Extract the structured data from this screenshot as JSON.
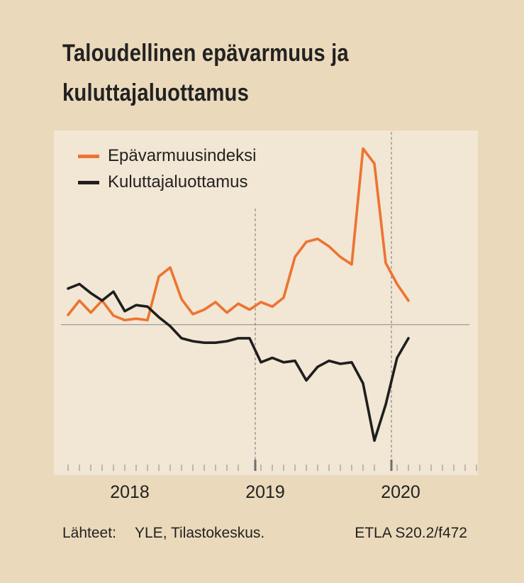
{
  "title_lines": [
    "Taloudellinen epävarmuus ja",
    "kuluttajaluottamus"
  ],
  "source_label": "Lähteet:",
  "source_text": "YLE, Tilastokeskus.",
  "code": "ETLA S20.2/f472",
  "colors": {
    "background": "#ebd9bb",
    "plot_bg": "#f2e6d4",
    "series_0": "#ec7430",
    "series_1": "#1e1e1e"
  },
  "chart_data": {
    "type": "line",
    "x": [
      "2017-08",
      "2017-09",
      "2017-10",
      "2017-11",
      "2017-12",
      "2018-01",
      "2018-02",
      "2018-03",
      "2018-04",
      "2018-05",
      "2018-06",
      "2018-07",
      "2018-08",
      "2018-09",
      "2018-10",
      "2018-11",
      "2018-12",
      "2019-01",
      "2019-02",
      "2019-03",
      "2019-04",
      "2019-05",
      "2019-06",
      "2019-07",
      "2019-08",
      "2019-09",
      "2019-10",
      "2019-11",
      "2019-12",
      "2020-01",
      "2020-02",
      "2020-03",
      "2020-04",
      "2020-05",
      "2020-06",
      "2020-07",
      "2020-08",
      "2020-09",
      "2020-10",
      "2020-11"
    ],
    "x_tick_labels": [
      "2018",
      "2019",
      "2020"
    ],
    "series": [
      {
        "name": "Epävarmuusindeksi",
        "values": [
          6.5,
          16,
          8,
          16,
          6,
          3,
          4,
          3,
          32,
          38,
          17,
          7,
          10,
          15,
          8,
          14,
          10,
          15,
          12,
          18,
          45,
          55,
          57,
          52,
          45,
          40,
          117,
          107,
          41,
          27,
          16,
          null,
          null,
          null,
          null,
          null,
          null,
          null,
          null,
          null
        ]
      },
      {
        "name": "Kuluttajaluottamus",
        "values": [
          24,
          27,
          21,
          16,
          22,
          9,
          13,
          12,
          5,
          -1,
          -9,
          -11,
          -12,
          -12,
          -11,
          -9,
          -9,
          -25,
          -22,
          -25,
          -24,
          -37,
          -28,
          -24,
          -26,
          -25,
          -39,
          -77,
          -53,
          -22,
          -9,
          null,
          null,
          null,
          null,
          null,
          null,
          null,
          null,
          null
        ]
      }
    ],
    "ylim": [
      -100,
      129
    ],
    "reference_line_y": 0,
    "grid": false,
    "legend_position": "top-left"
  }
}
